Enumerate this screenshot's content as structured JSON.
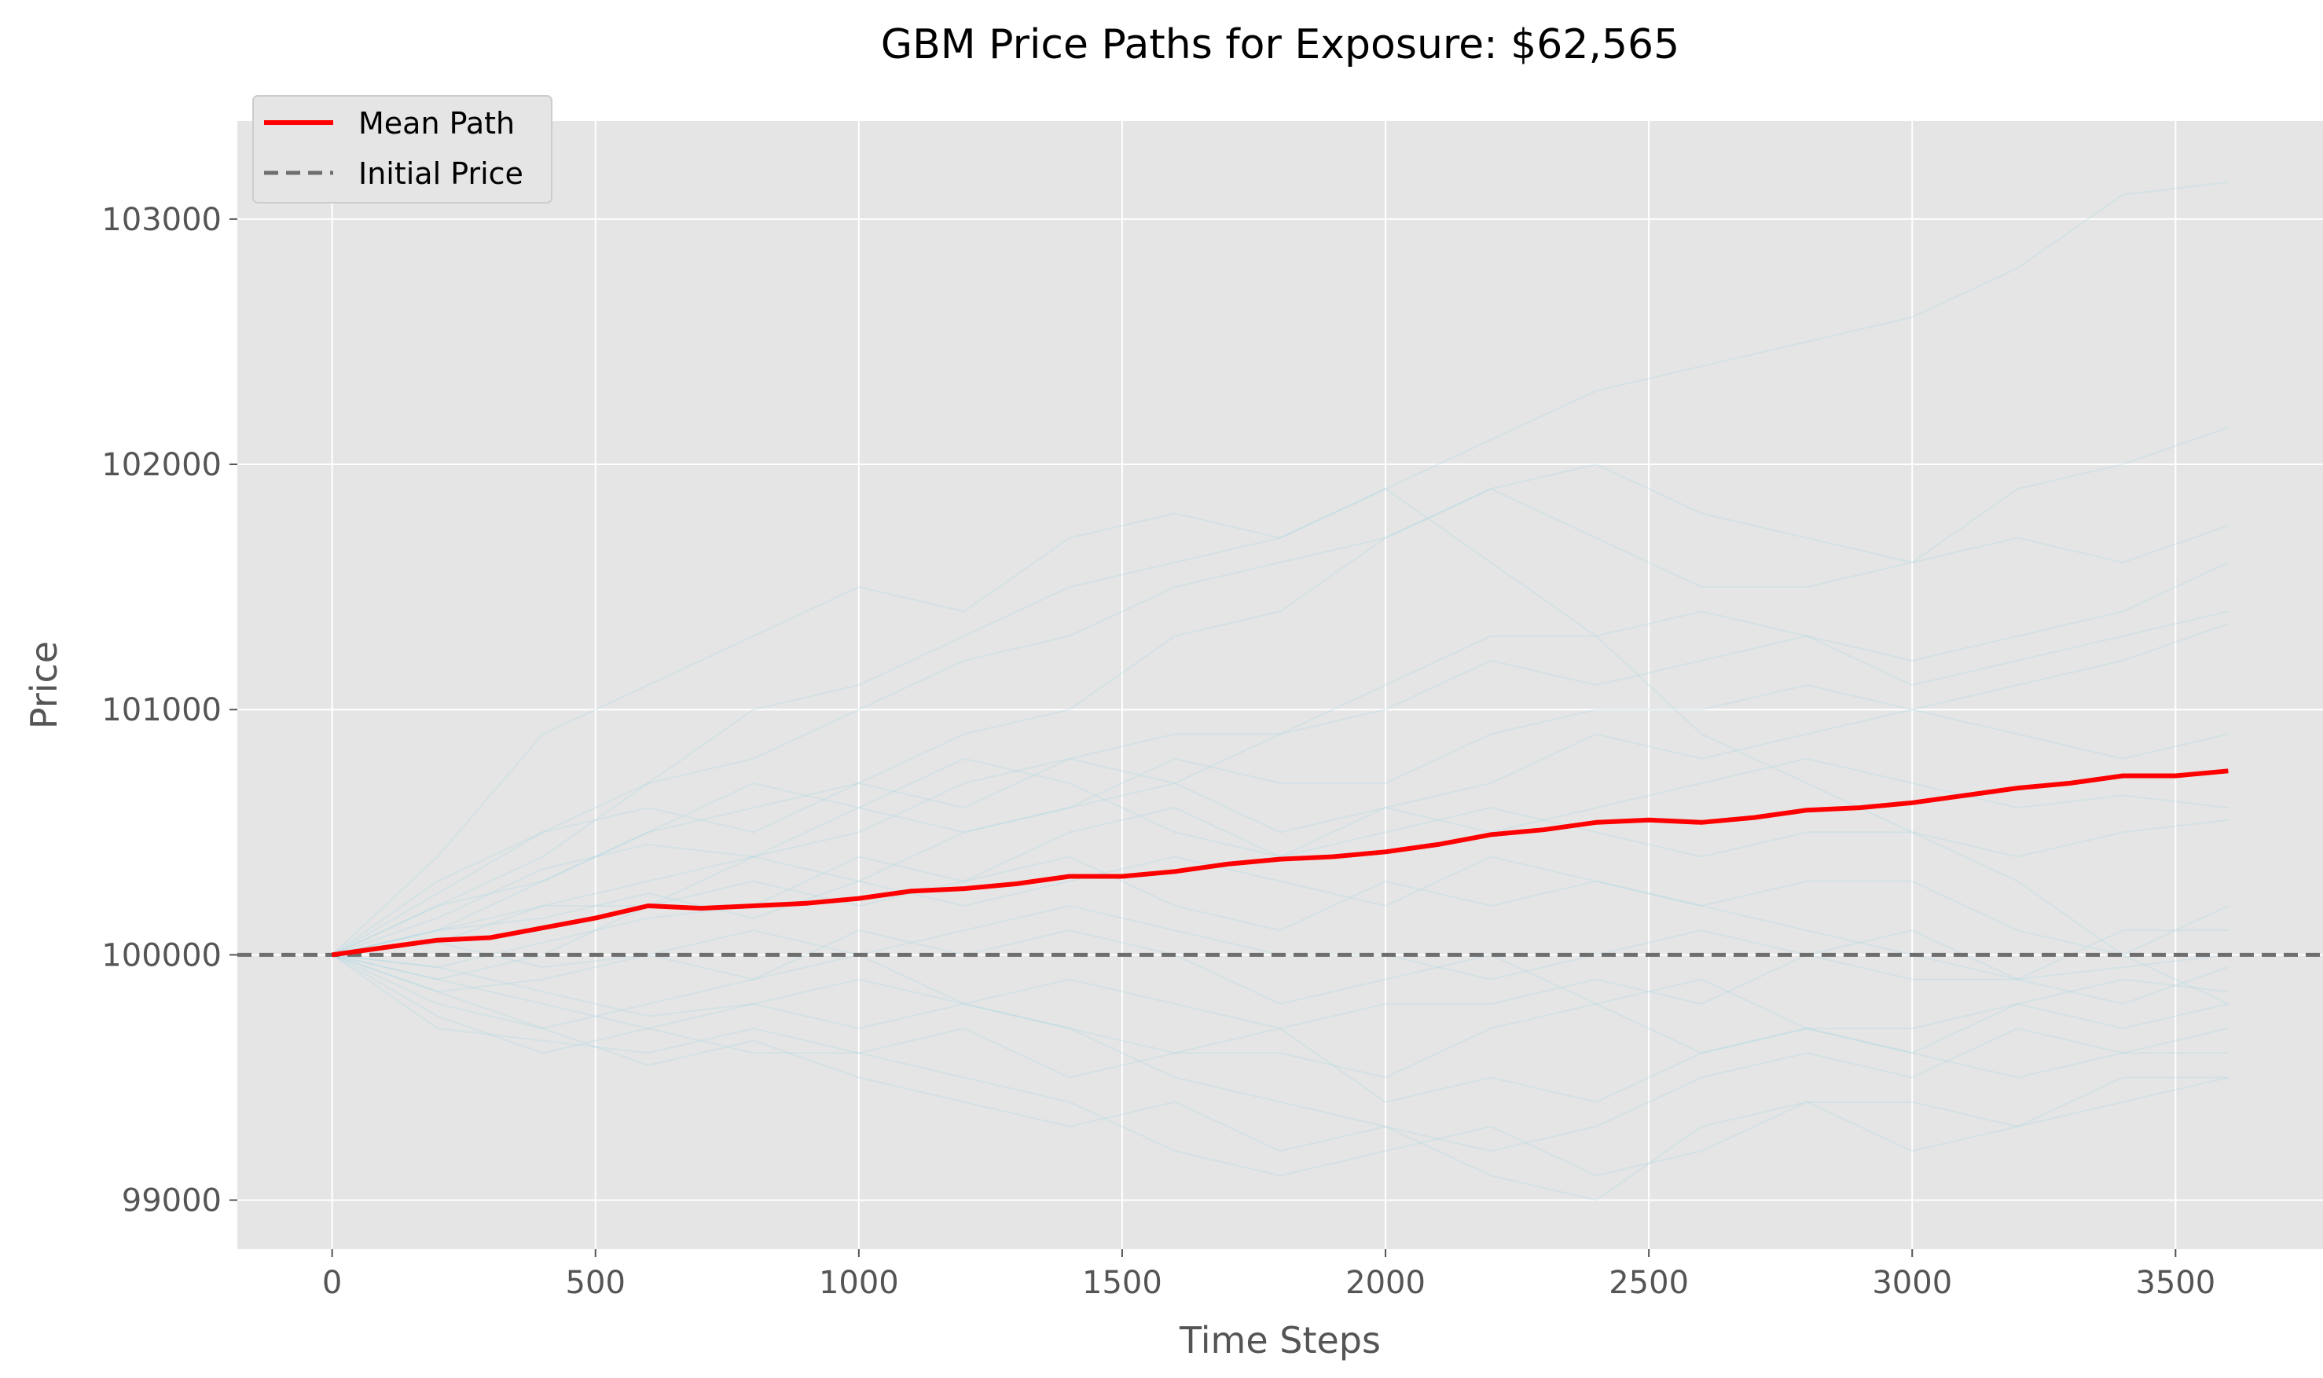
{
  "chart_data": {
    "type": "line",
    "title": "GBM Price Paths for Exposure: $62,565",
    "xlabel": "Time Steps",
    "ylabel": "Price",
    "xlim": [
      -180,
      3780
    ],
    "ylim": [
      98800,
      103400
    ],
    "xticks": [
      0,
      500,
      1000,
      1500,
      2000,
      2500,
      3000,
      3500
    ],
    "yticks": [
      99000,
      100000,
      101000,
      102000,
      103000
    ],
    "grid": true,
    "background": "#e5e5e5",
    "legend": {
      "placement": "top-left",
      "entries": [
        {
          "label": "Mean Path",
          "color": "#ff0000",
          "style": "solid"
        },
        {
          "label": "Initial Price",
          "color": "#6e6e6e",
          "style": "dashed"
        }
      ]
    },
    "reference_line": {
      "name": "Initial Price",
      "y": 100000,
      "color": "#6e6e6e"
    },
    "mean_path": {
      "name": "Mean Path",
      "color": "#ff0000",
      "x": [
        0,
        100,
        200,
        300,
        400,
        500,
        600,
        700,
        800,
        900,
        1000,
        1100,
        1200,
        1300,
        1400,
        1500,
        1600,
        1700,
        1800,
        1900,
        2000,
        2100,
        2200,
        2300,
        2400,
        2500,
        2600,
        2700,
        2800,
        2900,
        3000,
        3100,
        3200,
        3300,
        3400,
        3500,
        3600
      ],
      "y": [
        100000,
        100030,
        100060,
        100070,
        100110,
        100150,
        100200,
        100190,
        100200,
        100210,
        100230,
        100260,
        100270,
        100290,
        100320,
        100320,
        100340,
        100370,
        100390,
        100400,
        100420,
        100450,
        100490,
        100510,
        100540,
        100550,
        100540,
        100560,
        100590,
        100600,
        100620,
        100650,
        100680,
        100700,
        100730,
        100730,
        100750
      ]
    },
    "simulated_paths": {
      "color": "#add8e6",
      "opacity": 0.3,
      "count": 20,
      "x": [
        0,
        200,
        400,
        600,
        800,
        1000,
        1200,
        1400,
        1600,
        1800,
        2000,
        2200,
        2400,
        2600,
        2800,
        3000,
        3200,
        3400,
        3600
      ],
      "paths": [
        [
          100000,
          100400,
          100900,
          101100,
          101300,
          101500,
          101400,
          101700,
          101800,
          101700,
          101900,
          101600,
          101300,
          100900,
          100700,
          100500,
          100300,
          100000,
          99800
        ],
        [
          100000,
          100300,
          100500,
          100700,
          101000,
          101100,
          101300,
          101500,
          101600,
          101700,
          101900,
          102100,
          102300,
          102400,
          102500,
          102600,
          102800,
          103100,
          103150
        ],
        [
          100000,
          100200,
          100400,
          100700,
          100800,
          101000,
          101200,
          101300,
          101500,
          101600,
          101700,
          101900,
          102000,
          101800,
          101700,
          101600,
          101900,
          102000,
          102150
        ],
        [
          100000,
          100100,
          100300,
          100500,
          100600,
          100700,
          100900,
          101000,
          101300,
          101400,
          101700,
          101900,
          101700,
          101500,
          101500,
          101600,
          101700,
          101600,
          101750
        ],
        [
          100000,
          100250,
          100500,
          100600,
          100500,
          100700,
          100600,
          100800,
          100900,
          100900,
          101100,
          101300,
          101300,
          101400,
          101300,
          101200,
          101300,
          101400,
          101600
        ],
        [
          100000,
          100150,
          100350,
          100450,
          100400,
          100500,
          100700,
          100800,
          100700,
          100900,
          101000,
          101200,
          101100,
          101200,
          101300,
          101100,
          101200,
          101300,
          101400
        ],
        [
          100000,
          100050,
          100200,
          100300,
          100400,
          100600,
          100500,
          100600,
          100800,
          100700,
          100700,
          100900,
          101000,
          101000,
          101100,
          101000,
          101100,
          101200,
          101350
        ],
        [
          100000,
          100200,
          100300,
          100500,
          100700,
          100600,
          100800,
          100700,
          100500,
          100400,
          100600,
          100700,
          100900,
          100800,
          100900,
          101000,
          100900,
          100800,
          100900
        ],
        [
          100000,
          100100,
          100200,
          100200,
          100400,
          100300,
          100500,
          100600,
          100700,
          100500,
          100600,
          100500,
          100600,
          100700,
          100800,
          100700,
          100600,
          100650,
          100600
        ],
        [
          100000,
          99950,
          100050,
          100150,
          100200,
          100400,
          100300,
          100500,
          100600,
          100400,
          100500,
          100600,
          100500,
          100400,
          100500,
          100500,
          100400,
          100500,
          100550
        ],
        [
          100000,
          99900,
          100000,
          100200,
          100300,
          100200,
          100300,
          100400,
          100200,
          100100,
          100300,
          100200,
          100300,
          100200,
          100300,
          100300,
          100100,
          100000,
          100200
        ],
        [
          100000,
          99850,
          99900,
          100000,
          100100,
          100000,
          100100,
          100200,
          100100,
          100000,
          100000,
          99900,
          100000,
          100100,
          100000,
          99900,
          99900,
          100100,
          100100
        ],
        [
          100000,
          99800,
          99700,
          99800,
          99900,
          100000,
          99800,
          99900,
          99800,
          99700,
          99800,
          99800,
          99900,
          99800,
          100000,
          100100,
          99900,
          99800,
          99950
        ],
        [
          100000,
          99750,
          99600,
          99700,
          99800,
          99900,
          99800,
          99700,
          99600,
          99600,
          99500,
          99700,
          99800,
          99600,
          99700,
          99700,
          99800,
          99700,
          99800
        ],
        [
          100000,
          99700,
          99650,
          99600,
          99700,
          99600,
          99700,
          99500,
          99600,
          99700,
          99400,
          99500,
          99400,
          99600,
          99700,
          99600,
          99500,
          99600,
          99600
        ],
        [
          100000,
          99850,
          99700,
          99550,
          99650,
          99500,
          99400,
          99300,
          99400,
          99200,
          99300,
          99100,
          99000,
          99300,
          99400,
          99200,
          99300,
          99400,
          99500
        ],
        [
          100000,
          99900,
          99800,
          99700,
          99600,
          99600,
          99500,
          99400,
          99200,
          99100,
          99200,
          99300,
          99100,
          99200,
          99400,
          99400,
          99300,
          99500,
          99500
        ],
        [
          100000,
          99950,
          99850,
          99750,
          99800,
          99700,
          99800,
          99700,
          99500,
          99400,
          99300,
          99200,
          99300,
          99500,
          99600,
          99500,
          99700,
          99600,
          99700
        ],
        [
          100000,
          100050,
          99950,
          100000,
          99900,
          100100,
          100000,
          100100,
          100000,
          99800,
          99900,
          100000,
          99800,
          99900,
          99700,
          99600,
          99800,
          99900,
          99850
        ],
        [
          100000,
          100100,
          100150,
          100250,
          100150,
          100300,
          100200,
          100300,
          100400,
          100300,
          100200,
          100400,
          100300,
          100200,
          100100,
          100000,
          99900,
          99950,
          100000
        ]
      ]
    }
  }
}
